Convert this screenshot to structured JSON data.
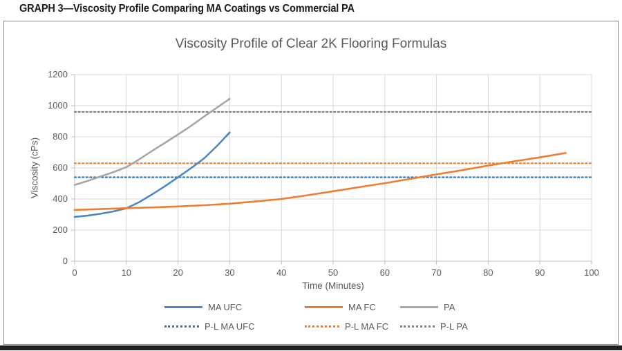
{
  "page": {
    "header": "GRAPH 3—Viscosity Profile Comparing MA Coatings vs Commercial PA"
  },
  "chart_data": {
    "type": "line",
    "title": "Viscosity Profile of Clear 2K Flooring Formulas",
    "xlabel": "Time (Minutes)",
    "ylabel": "Viscosity (cPs)",
    "xlim": [
      0,
      100
    ],
    "ylim": [
      0,
      1200
    ],
    "x_ticks": [
      0,
      10,
      20,
      30,
      40,
      50,
      60,
      70,
      80,
      90,
      100
    ],
    "y_ticks": [
      0,
      200,
      400,
      600,
      800,
      1000,
      1200
    ],
    "grid": true,
    "legend_position": "bottom",
    "series": [
      {
        "name": "MA UFC",
        "style": "solid",
        "color": "#4a87c4",
        "points": [
          [
            0,
            285
          ],
          [
            2.5,
            293
          ],
          [
            5,
            305
          ],
          [
            7.5,
            320
          ],
          [
            10,
            340
          ],
          [
            12.5,
            380
          ],
          [
            15,
            430
          ],
          [
            17.5,
            483
          ],
          [
            20,
            540
          ],
          [
            22.5,
            598
          ],
          [
            25,
            660
          ],
          [
            27.5,
            740
          ],
          [
            30,
            828
          ]
        ]
      },
      {
        "name": "MA FC",
        "style": "solid",
        "color": "#ed7d31",
        "points": [
          [
            0,
            330
          ],
          [
            5,
            335
          ],
          [
            10,
            341
          ],
          [
            15,
            346
          ],
          [
            20,
            352
          ],
          [
            25,
            360
          ],
          [
            30,
            370
          ],
          [
            35,
            384
          ],
          [
            40,
            400
          ],
          [
            45,
            424
          ],
          [
            50,
            450
          ],
          [
            55,
            476
          ],
          [
            60,
            502
          ],
          [
            65,
            530
          ],
          [
            70,
            558
          ],
          [
            75,
            586
          ],
          [
            80,
            615
          ],
          [
            85,
            642
          ],
          [
            90,
            668
          ],
          [
            95,
            696
          ]
        ]
      },
      {
        "name": "PA",
        "style": "solid",
        "color": "#a6a6a6",
        "points": [
          [
            0,
            490
          ],
          [
            2.5,
            516
          ],
          [
            5,
            545
          ],
          [
            7.5,
            573
          ],
          [
            10,
            605
          ],
          [
            12.5,
            655
          ],
          [
            15,
            710
          ],
          [
            17.5,
            762
          ],
          [
            20,
            815
          ],
          [
            22.5,
            870
          ],
          [
            25,
            930
          ],
          [
            27.5,
            987
          ],
          [
            30,
            1045
          ]
        ]
      },
      {
        "name": "P-L MA UFC",
        "style": "dotted",
        "color": "#2e75b6",
        "points": [
          [
            0,
            540
          ],
          [
            100,
            540
          ]
        ]
      },
      {
        "name": "P-L MA FC",
        "style": "dotted",
        "color": "#ed7d31",
        "points": [
          [
            0,
            630
          ],
          [
            100,
            630
          ]
        ]
      },
      {
        "name": "P-L PA",
        "style": "dotted",
        "color": "#7f7f7f",
        "points": [
          [
            0,
            960
          ],
          [
            100,
            960
          ]
        ]
      }
    ]
  },
  "colors": {
    "grid": "#d9d9d9",
    "axis": "#bfbfbf",
    "chart_text": "#595959",
    "frame_border": "#8a8a8a",
    "header_text": "#1b1b1b"
  }
}
